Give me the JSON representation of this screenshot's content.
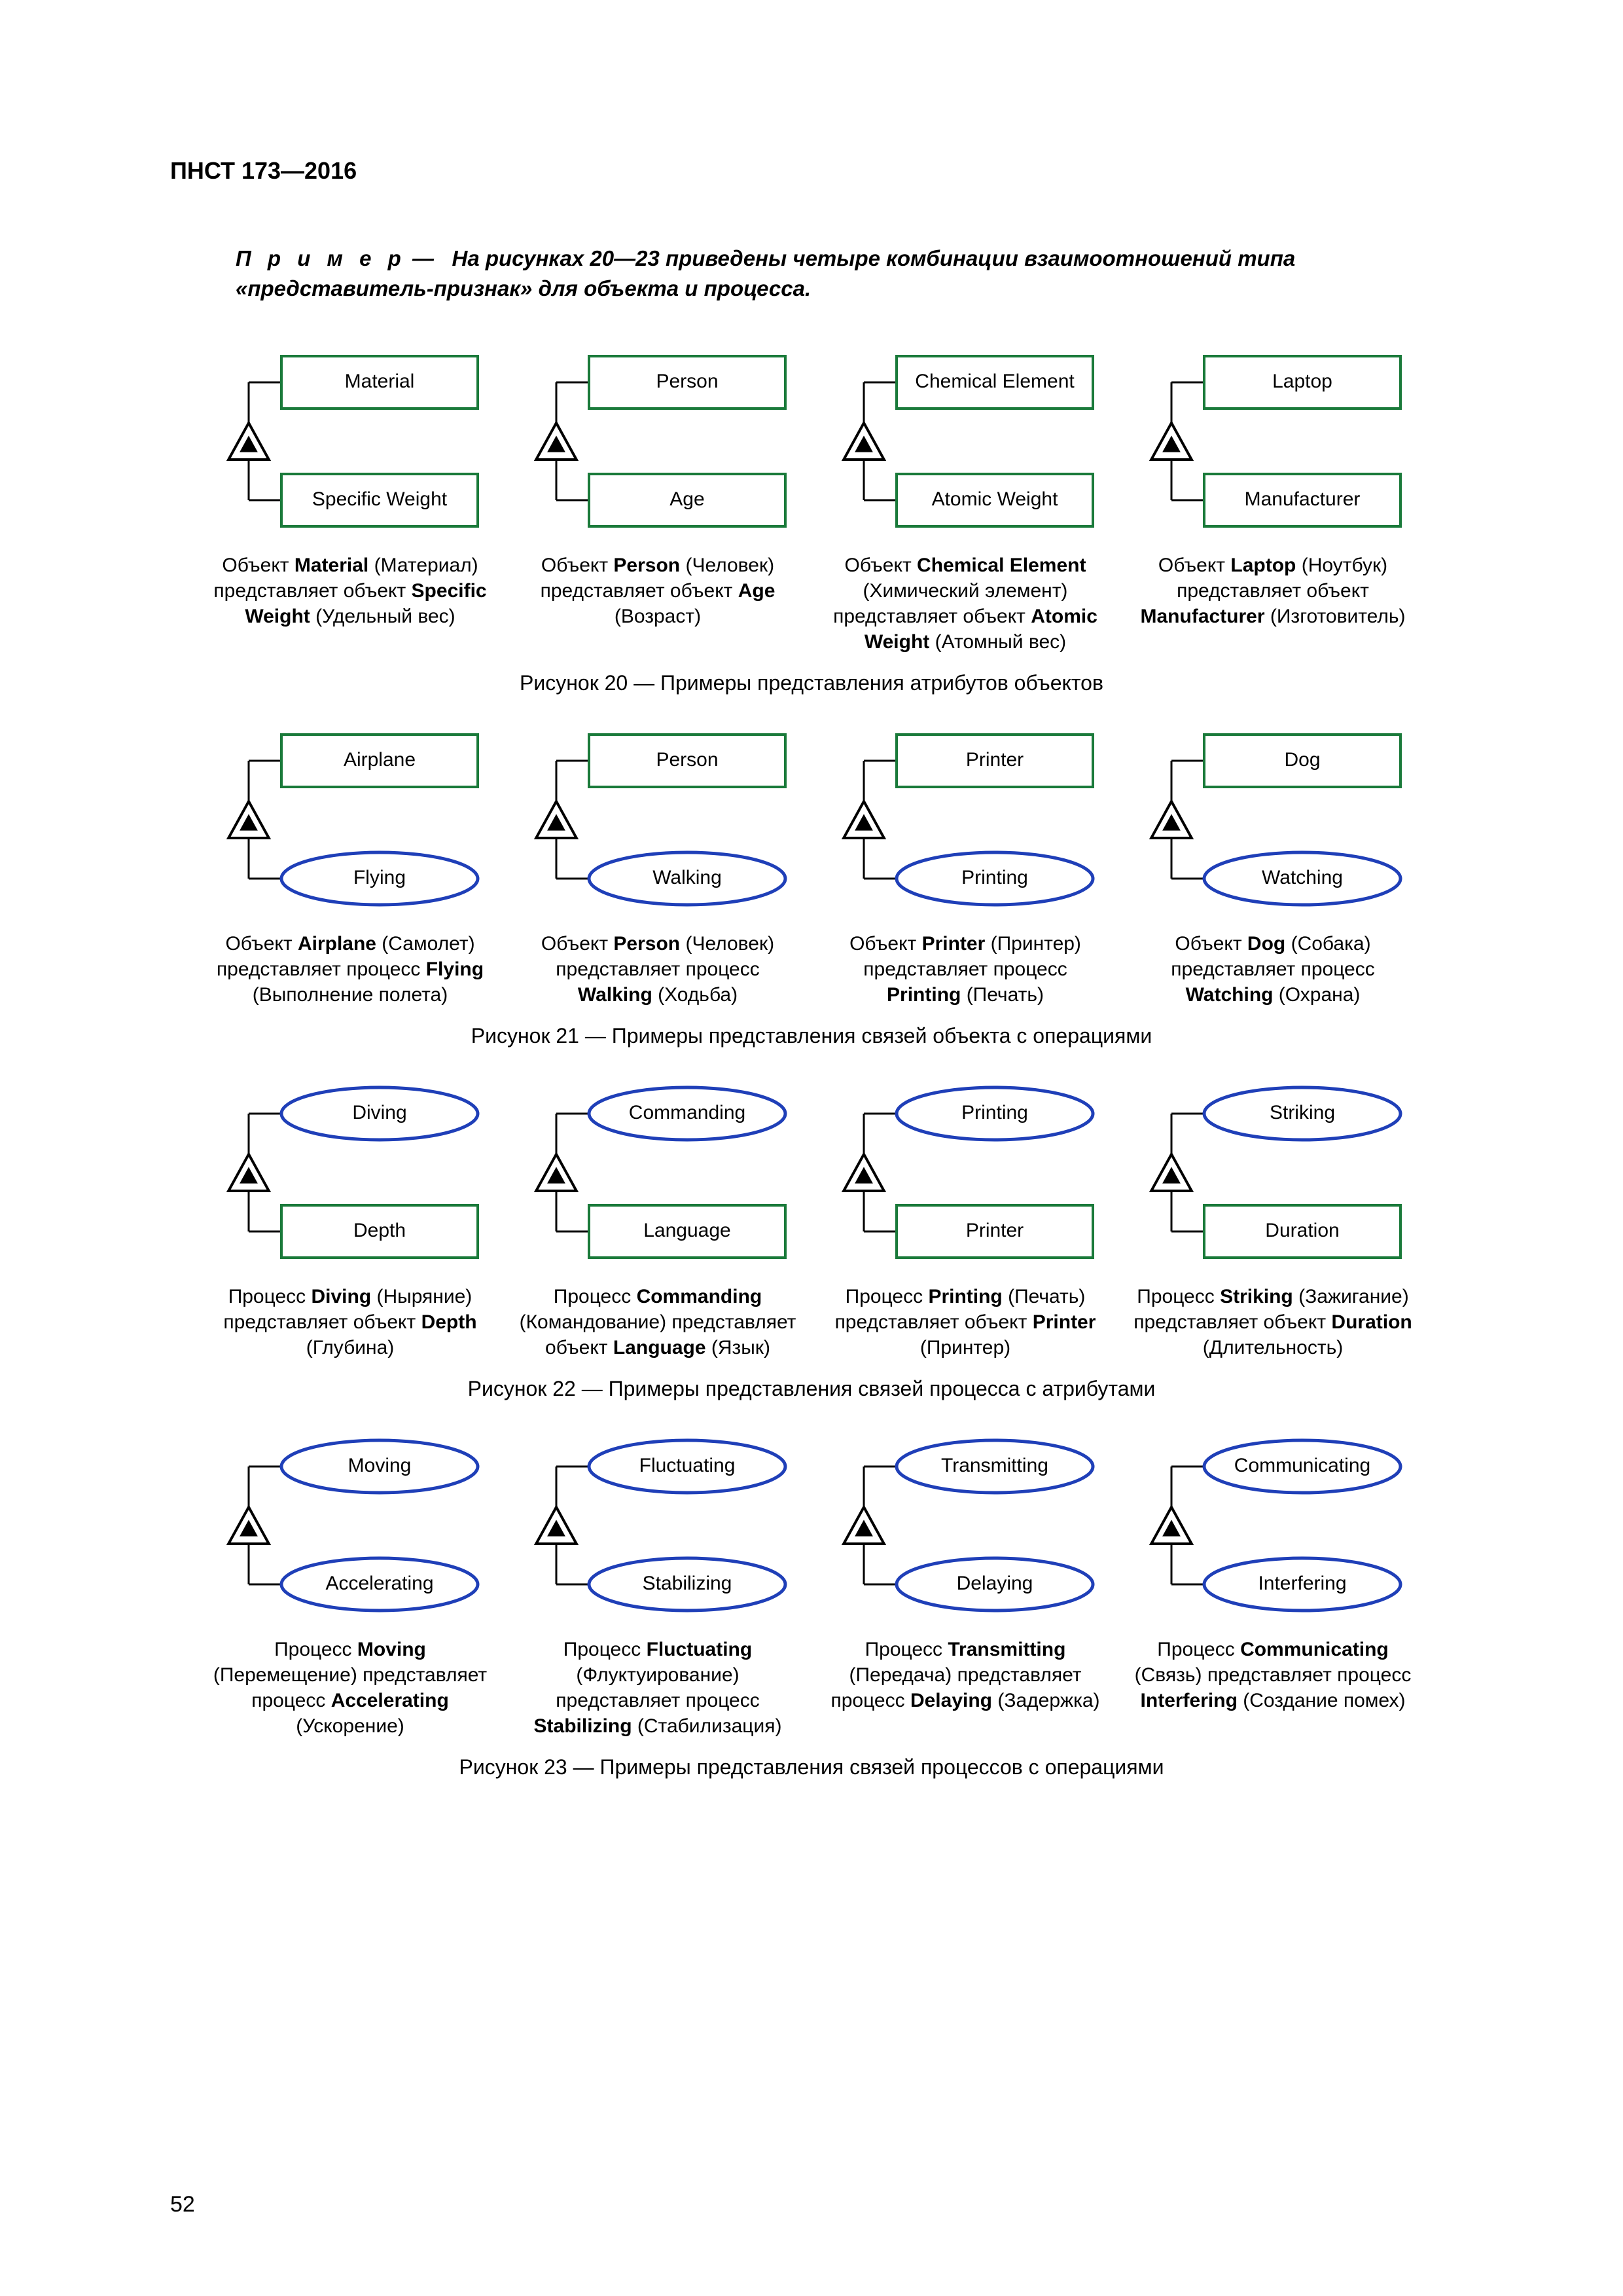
{
  "header": "ПНСТ 173—2016",
  "example_lead": "П р и м е р",
  "example_text": "—   На рисунках 20—23 приведены четыре комбинации взаимоотношений типа «представитель-признак» для объекта и процесса.",
  "page_number": "52",
  "colors": {
    "rect_stroke": "#1a7a3a",
    "ellipse_stroke": "#1f3fb8",
    "tri_stroke": "#000000",
    "line": "#000000",
    "text": "#000000"
  },
  "figures": [
    {
      "id": "fig20",
      "title": "Рисунок 20 — Примеры представления атрибутов объектов",
      "top_shape": "rect",
      "bottom_shape": "rect",
      "units": [
        {
          "top": "Material",
          "bottom": "Specific Weight",
          "cap_parts": [
            "Объект ",
            {
              "b": "Material"
            },
            " (Материал) представляет объект ",
            {
              "b": "Specific Weight"
            },
            " (Удельный вес)"
          ]
        },
        {
          "top": "Person",
          "bottom": "Age",
          "cap_parts": [
            "Объект ",
            {
              "b": "Person"
            },
            " (Человек) представляет объект ",
            {
              "b": "Age"
            },
            " (Возраст)"
          ]
        },
        {
          "top": "Chemical Element",
          "bottom": "Atomic Weight",
          "cap_parts": [
            "Объект ",
            {
              "b": "Chemical Element"
            },
            " (Химический элемент) представляет объект ",
            {
              "b": "Atomic Weight"
            },
            " (Атомный вес)"
          ]
        },
        {
          "top": "Laptop",
          "bottom": "Manufacturer",
          "cap_parts": [
            "Объект ",
            {
              "b": "Laptop"
            },
            " (Ноутбук) представляет объект ",
            {
              "b": "Manufacturer"
            },
            " (Изготовитель)"
          ]
        }
      ]
    },
    {
      "id": "fig21",
      "title": "Рисунок 21 — Примеры представления связей объекта с операциями",
      "top_shape": "rect",
      "bottom_shape": "ellipse",
      "units": [
        {
          "top": "Airplane",
          "bottom": "Flying",
          "cap_parts": [
            "Объект ",
            {
              "b": "Airplane"
            },
            " (Самолет) представляет процесс ",
            {
              "b": "Flying"
            },
            " (Выполнение полета)"
          ]
        },
        {
          "top": "Person",
          "bottom": "Walking",
          "cap_parts": [
            "Объект ",
            {
              "b": "Person"
            },
            " (Человек) представляет процесс ",
            {
              "b": "Walking"
            },
            " (Ходьба)"
          ]
        },
        {
          "top": "Printer",
          "bottom": "Printing",
          "cap_parts": [
            "Объект ",
            {
              "b": "Printer"
            },
            " (Принтер) представляет процесс ",
            {
              "b": "Printing"
            },
            " (Печать)"
          ]
        },
        {
          "top": "Dog",
          "bottom": "Watching",
          "cap_parts": [
            "Объект ",
            {
              "b": "Dog"
            },
            " (Собака) представляет процесс ",
            {
              "b": "Watching"
            },
            " (Охрана)"
          ]
        }
      ]
    },
    {
      "id": "fig22",
      "title": "Рисунок 22 — Примеры представления связей процесса с атрибутами",
      "top_shape": "ellipse",
      "bottom_shape": "rect",
      "units": [
        {
          "top": "Diving",
          "bottom": "Depth",
          "cap_parts": [
            "Процесс ",
            {
              "b": "Diving"
            },
            " (Ныряние) представляет объект ",
            {
              "b": "Depth"
            },
            " (Глубина)"
          ]
        },
        {
          "top": "Commanding",
          "bottom": "Language",
          "cap_parts": [
            "Процесс ",
            {
              "b": "Commanding"
            },
            " (Командование) представляет объект ",
            {
              "b": "Language"
            },
            " (Язык)"
          ]
        },
        {
          "top": "Printing",
          "bottom": "Printer",
          "cap_parts": [
            "Процесс ",
            {
              "b": "Printing"
            },
            " (Печать) представляет объект ",
            {
              "b": "Printer"
            },
            " (Принтер)"
          ]
        },
        {
          "top": "Striking",
          "bottom": "Duration",
          "cap_parts": [
            "Процесс ",
            {
              "b": "Striking"
            },
            " (Зажигание) представляет объект ",
            {
              "b": "Duration"
            },
            " (Длительность)"
          ]
        }
      ]
    },
    {
      "id": "fig23",
      "title": "Рисунок 23 — Примеры представления связей процессов с операциями",
      "top_shape": "ellipse",
      "bottom_shape": "ellipse",
      "units": [
        {
          "top": "Moving",
          "bottom": "Accelerating",
          "cap_parts": [
            "Процесс ",
            {
              "b": "Moving"
            },
            " (Перемещение) представляет процесс ",
            {
              "b": "Accelerating"
            },
            " (Ускорение)"
          ]
        },
        {
          "top": "Fluctuating",
          "bottom": "Stabilizing",
          "cap_parts": [
            "Процесс ",
            {
              "b": "Fluctuating"
            },
            " (Флуктуирование) представляет процесс ",
            {
              "b": "Stabilizing"
            },
            " (Стабилизация)"
          ]
        },
        {
          "top": "Transmitting",
          "bottom": "Delaying",
          "cap_parts": [
            "Процесс ",
            {
              "b": "Transmitting"
            },
            " (Передача) представляет процесс ",
            {
              "b": "Delaying"
            },
            " (Задержка)"
          ]
        },
        {
          "top": "Communicating",
          "bottom": "Interfering",
          "cap_parts": [
            "Процесс ",
            {
              "b": "Communicating"
            },
            " (Связь) представляет процесс ",
            {
              "b": "Interfering"
            },
            " (Создание помех)"
          ]
        }
      ]
    }
  ]
}
